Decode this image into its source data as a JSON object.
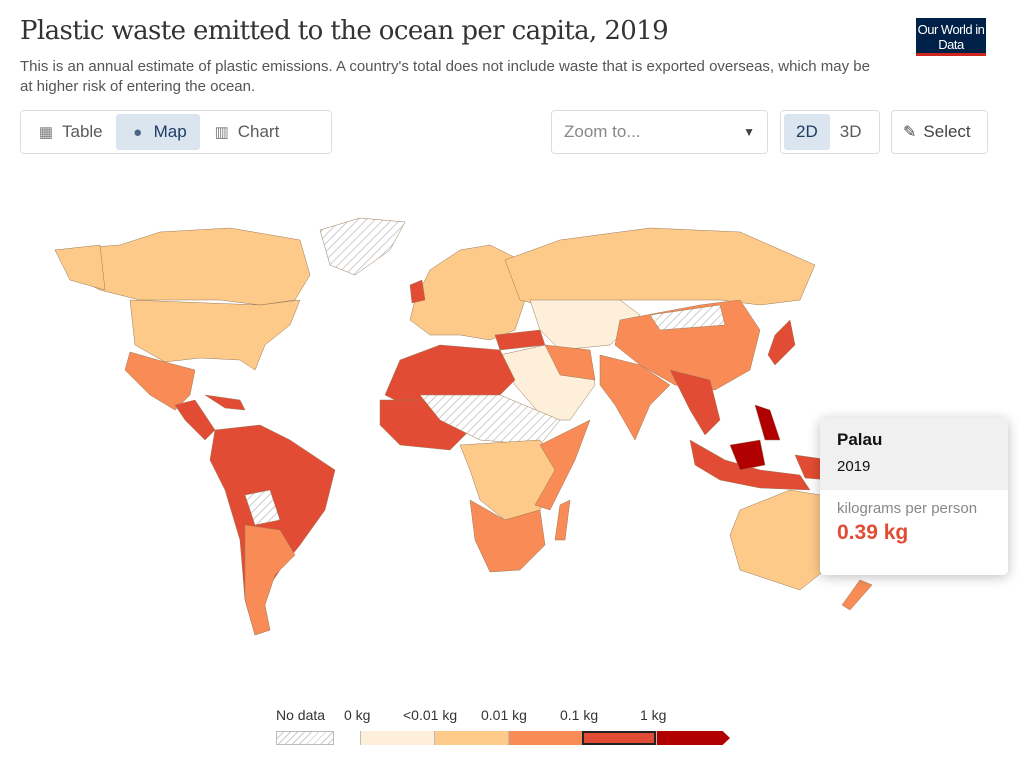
{
  "header": {
    "title": "Plastic waste emitted to the ocean per capita, 2019",
    "subtitle": "This is an annual estimate of plastic emissions. A country's total does not include waste that is exported overseas, which may be at higher risk of entering the ocean.",
    "logo": "Our World in Data"
  },
  "tabs": [
    {
      "label": "Table",
      "icon": "table-icon"
    },
    {
      "label": "Map",
      "icon": "globe-icon",
      "active": true
    },
    {
      "label": "Chart",
      "icon": "chart-icon"
    }
  ],
  "controls": {
    "zoom_placeholder": "Zoom to...",
    "mode_2d": "2D",
    "mode_3d": "3D",
    "select": "Select"
  },
  "tooltip": {
    "entity": "Palau",
    "year": "2019",
    "unit": "kilograms per person",
    "value": "0.39 kg"
  },
  "legend": {
    "no_data": "No data",
    "labels": [
      "0 kg",
      "<0.01 kg",
      "0.01 kg",
      "0.1 kg",
      "1 kg"
    ],
    "colors": [
      "#fdefd9",
      "#fdca8a",
      "#f98c56",
      "#e24c34",
      "#b10000"
    ],
    "highlighted_bin": 3
  }
}
